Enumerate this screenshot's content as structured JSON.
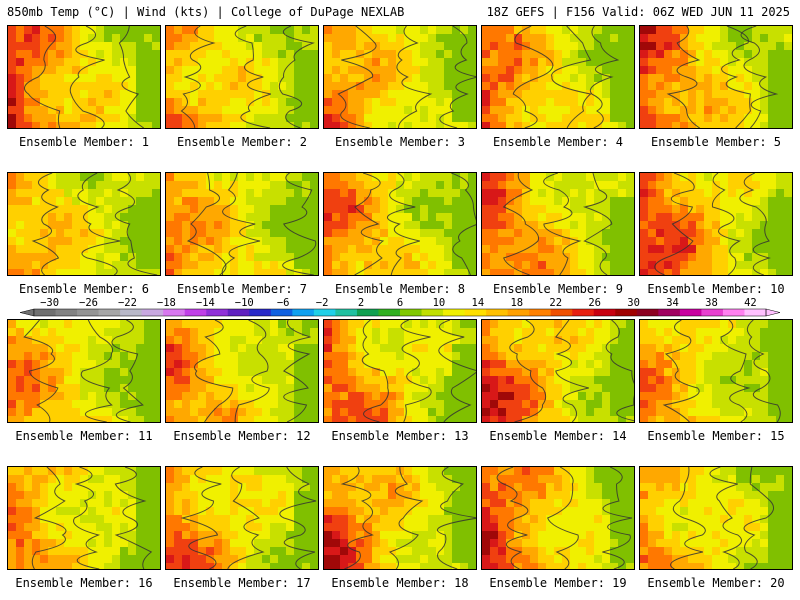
{
  "header": {
    "left": "850mb Temp (°C) | Wind (kts) | College of DuPage NEXLAB",
    "right": "18Z GEFS | F156 Valid: 06Z WED JUN 11 2025"
  },
  "members": [
    {
      "label": "Ensemble Member: 1"
    },
    {
      "label": "Ensemble Member: 2"
    },
    {
      "label": "Ensemble Member: 3"
    },
    {
      "label": "Ensemble Member: 4"
    },
    {
      "label": "Ensemble Member: 5"
    },
    {
      "label": "Ensemble Member: 6"
    },
    {
      "label": "Ensemble Member: 7"
    },
    {
      "label": "Ensemble Member: 8"
    },
    {
      "label": "Ensemble Member: 9"
    },
    {
      "label": "Ensemble Member: 10"
    },
    {
      "label": "Ensemble Member: 11"
    },
    {
      "label": "Ensemble Member: 12"
    },
    {
      "label": "Ensemble Member: 13"
    },
    {
      "label": "Ensemble Member: 14"
    },
    {
      "label": "Ensemble Member: 15"
    },
    {
      "label": "Ensemble Member: 16"
    },
    {
      "label": "Ensemble Member: 17"
    },
    {
      "label": "Ensemble Member: 18"
    },
    {
      "label": "Ensemble Member: 19"
    },
    {
      "label": "Ensemble Member: 20"
    }
  ],
  "colorbar": {
    "labels": [
      "−30",
      "−26",
      "−22",
      "−18",
      "−14",
      "−10",
      "−6",
      "−2",
      "2",
      "6",
      "10",
      "14",
      "18",
      "22",
      "26",
      "30",
      "34",
      "38",
      "42"
    ],
    "colors": [
      "#707070",
      "#828282",
      "#949494",
      "#a6a6a6",
      "#b8b8c8",
      "#c8a8e0",
      "#d878f0",
      "#c040e8",
      "#9030d8",
      "#6020c0",
      "#2828c8",
      "#1060e0",
      "#10a0f0",
      "#20d0e8",
      "#20c0a0",
      "#10a050",
      "#30b020",
      "#80c800",
      "#c0e000",
      "#f0f000",
      "#ffe000",
      "#ffc000",
      "#ffa000",
      "#ff8000",
      "#f05000",
      "#e82010",
      "#c80010",
      "#a00000",
      "#8c0020",
      "#a00060",
      "#c800a0",
      "#e840d0",
      "#ff80f0",
      "#ffc0ff"
    ]
  }
}
